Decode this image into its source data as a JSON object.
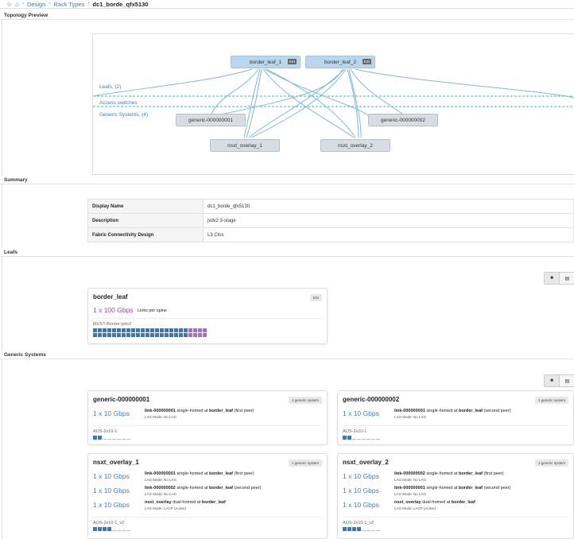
{
  "breadcrumb": {
    "items": [
      "Design",
      "Rack Types"
    ],
    "current": "dc1_borde_qfx5130",
    "sep": "›",
    "star": "☆",
    "home": "⌂"
  },
  "topology": {
    "header": "Topology Preview",
    "leaf_label": "Leafs, (2)",
    "access_label": "Access switches",
    "generic_label": "Generic Systems, (4)",
    "nodes": {
      "border_leaf_1": "border_leaf_1",
      "border_leaf_2": "border_leaf_2",
      "generic_1": "generic-000000001",
      "generic_2": "generic-000000002",
      "nsxt_1": "nsxt_overlay_1",
      "nsxt_2": "nsxt_overlay_2"
    },
    "esi": "ESI"
  },
  "summary": {
    "header": "Summary",
    "rows": [
      {
        "k": "Display Name",
        "v": "dc1_borde_qfx5130"
      },
      {
        "k": "Description",
        "v": "jvdv2 3-stage"
      },
      {
        "k": "Fabric Connectivity Design",
        "v": "L3 Clos"
      }
    ]
  },
  "leafs": {
    "header": "Leafs",
    "card": {
      "title": "border_leaf",
      "tag": "ESI",
      "speed": "1 x 100 Gbps",
      "links_label": "Links per spine",
      "device": "MUST-Border-jvdv2",
      "ports_total": 48,
      "ports_used_blue": 40,
      "ports_used_purple": 8
    }
  },
  "generic": {
    "header": "Generic Systems",
    "cards": [
      {
        "title": "generic-000000001",
        "tag": "1 generic system",
        "links": [
          {
            "speed": "1 x 10 Gbps",
            "link": "link-000000001",
            "mid": " single-homed at ",
            "target": "border_leaf",
            "suffix": " (first peer)",
            "lag": "LAG Mode: No LAG"
          }
        ],
        "device": "AOS-2x10-1",
        "ports_blue": 2,
        "ports_empty": 6
      },
      {
        "title": "generic-000000002",
        "tag": "1 generic system",
        "links": [
          {
            "speed": "1 x 10 Gbps",
            "link": "link-000000001",
            "mid": " single-homed at ",
            "target": "border_leaf",
            "suffix": " (second peer)",
            "lag": "LAG Mode: No LAG"
          }
        ],
        "device": "AOS-2x10-1",
        "ports_blue": 2,
        "ports_empty": 6
      },
      {
        "title": "nsxt_overlay_1",
        "tag": "1 generic system",
        "links": [
          {
            "speed": "1 x 10 Gbps",
            "link": "link-000000001",
            "mid": " single-homed at ",
            "target": "border_leaf",
            "suffix": " (first peer)",
            "lag": "LAG Mode: No LAG"
          },
          {
            "speed": "1 x 10 Gbps",
            "link": "link-000000002",
            "mid": " single-homed at ",
            "target": "border_leaf",
            "suffix": " (second peer)",
            "lag": "LAG Mode: No LAG"
          },
          {
            "speed": "1 x 10 Gbps",
            "link": "nsxt_overlay",
            "mid": " dual-homed at ",
            "target": "border_leaf",
            "suffix": "",
            "lag": "LAG Mode: LACP (Active)"
          }
        ],
        "device": "AOS-2x10-1_v2",
        "ports_blue": 4,
        "ports_empty": 4
      },
      {
        "title": "nsxt_overlay_2",
        "tag": "1 generic system",
        "links": [
          {
            "speed": "1 x 10 Gbps",
            "link": "link-000000002",
            "mid": " single-homed at ",
            "target": "border_leaf",
            "suffix": " (first peer)",
            "lag": "LAG Mode: No LAG"
          },
          {
            "speed": "1 x 10 Gbps",
            "link": "link-000000001",
            "mid": " single-homed at ",
            "target": "border_leaf",
            "suffix": " (second peer)",
            "lag": "LAG Mode: No LAG"
          },
          {
            "speed": "1 x 10 Gbps",
            "link": "nsxt_overlay",
            "mid": " dual-homed at ",
            "target": "border_leaf",
            "suffix": "",
            "lag": "LAG Mode: LACP (Active)"
          }
        ],
        "device": "AOS-2x10-1_v2",
        "ports_blue": 4,
        "ports_empty": 4
      }
    ]
  },
  "colors": {
    "accent": "#3a7fc1",
    "leaf_node": "#b9d6ec",
    "generic_node": "#d9dde3",
    "port_blue": "#2d7cc1",
    "port_purple": "#b067d6",
    "dash": "#3fb6c6"
  }
}
